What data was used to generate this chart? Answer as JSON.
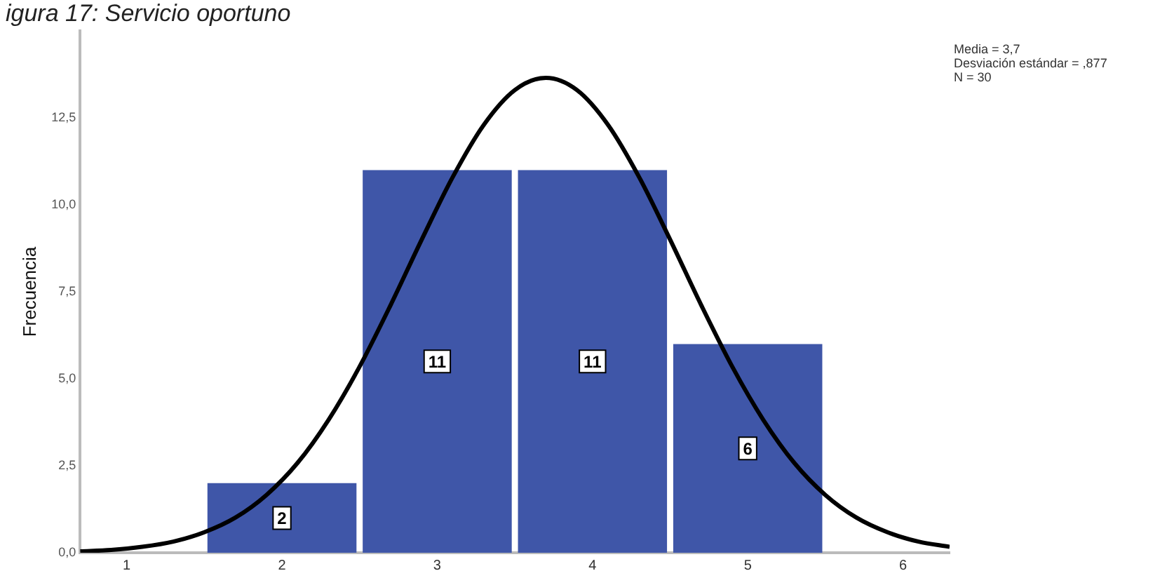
{
  "chart_data": {
    "type": "histogram",
    "title": "igura 17: Servicio oportuno",
    "ylabel": "Frecuencia",
    "bins": [
      1.5,
      2.5,
      3.5,
      4.5,
      5.5
    ],
    "values": [
      2,
      11,
      11,
      6
    ],
    "color": "#3f56a8",
    "value_labels": [
      "2",
      "11",
      "11",
      "6"
    ],
    "series": [
      {
        "type": "line",
        "color": "#000000",
        "x": [
          0.7,
          0.9,
          1.1,
          1.3,
          1.5,
          1.7,
          1.9,
          2.1,
          2.3,
          2.5,
          2.7,
          2.9,
          3.1,
          3.3,
          3.5,
          3.7,
          3.9,
          4.1,
          4.3,
          4.5,
          4.7,
          4.9,
          5.1,
          5.3,
          5.5,
          5.7,
          5.9,
          6.1,
          6.3
        ],
        "values": [
          0.04,
          0.08,
          0.17,
          0.32,
          0.59,
          1.01,
          1.66,
          2.58,
          3.82,
          5.35,
          7.12,
          9.0,
          10.8,
          12.3,
          13.3,
          13.65,
          13.3,
          12.3,
          10.8,
          9.0,
          7.12,
          5.35,
          3.82,
          2.58,
          1.66,
          1.01,
          0.59,
          0.32,
          0.17
        ]
      }
    ],
    "xlim": [
      0.7,
      6.3
    ],
    "xticks": [
      1,
      2,
      3,
      4,
      5,
      6
    ],
    "ylim": [
      0,
      15
    ],
    "yticks": [
      {
        "value": 0,
        "label": "0,0"
      },
      {
        "value": 2.5,
        "label": "2,5"
      },
      {
        "value": 5,
        "label": "5,0"
      },
      {
        "value": 7.5,
        "label": "7,5"
      },
      {
        "value": 10,
        "label": "10,0"
      },
      {
        "value": 12.5,
        "label": "12,5"
      }
    ],
    "annotations": [
      "Media = 3,7",
      "Desviación estándar = ,877",
      "N = 30"
    ],
    "grid": false,
    "legend": false
  }
}
